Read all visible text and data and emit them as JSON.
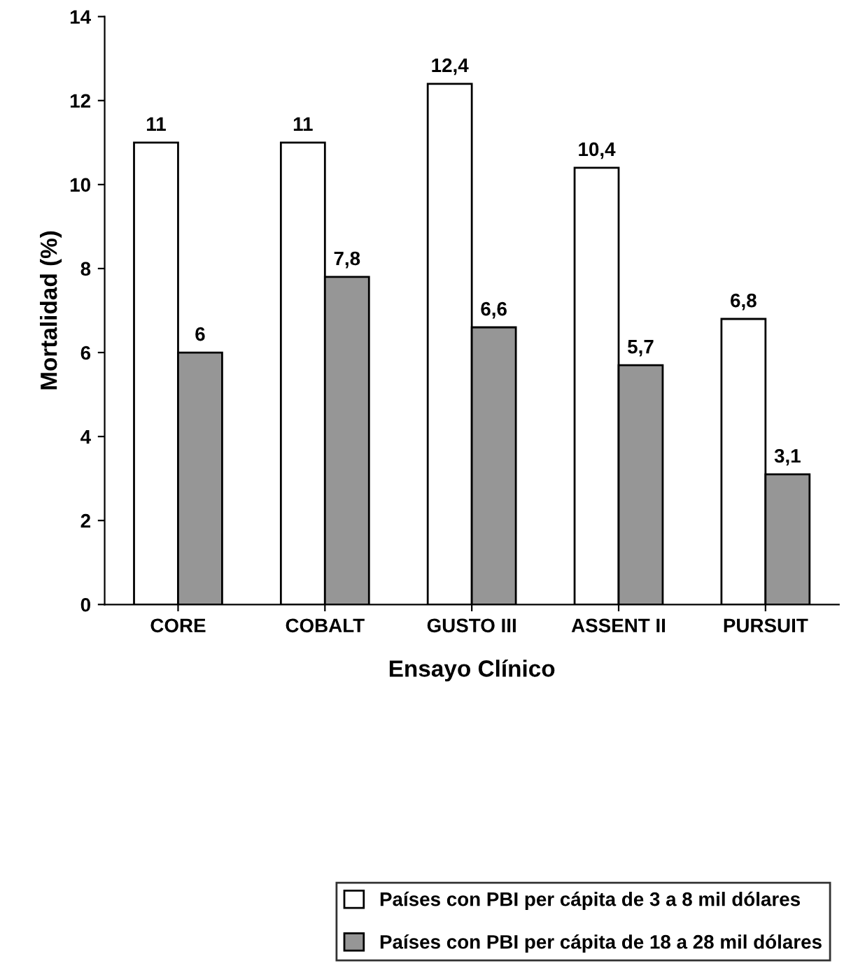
{
  "chart_data": {
    "type": "bar",
    "xlabel": "Ensayo Clínico",
    "ylabel": "Mortalidad (%)",
    "categories": [
      "CORE",
      "COBALT",
      "GUSTO III",
      "ASSENT II",
      "PURSUIT"
    ],
    "series": [
      {
        "name": "Países con PBI per cápita de 3 a 8 mil dólares",
        "color": "#ffffff",
        "values": [
          11,
          11,
          12.4,
          10.4,
          6.8
        ],
        "value_labels": [
          "11",
          "11",
          "12,4",
          "10,4",
          "6,8"
        ]
      },
      {
        "name": "Países con PBI per cápita de 18 a 28 mil dólares",
        "color": "#969696",
        "values": [
          6,
          7.8,
          6.6,
          5.7,
          3.1
        ],
        "value_labels": [
          "6",
          "7,8",
          "6,6",
          "5,7",
          "3,1"
        ]
      }
    ],
    "ylim": [
      0,
      14
    ],
    "yticks": [
      0,
      2,
      4,
      6,
      8,
      10,
      12,
      14
    ],
    "grid": false,
    "legend": "bottom right"
  }
}
